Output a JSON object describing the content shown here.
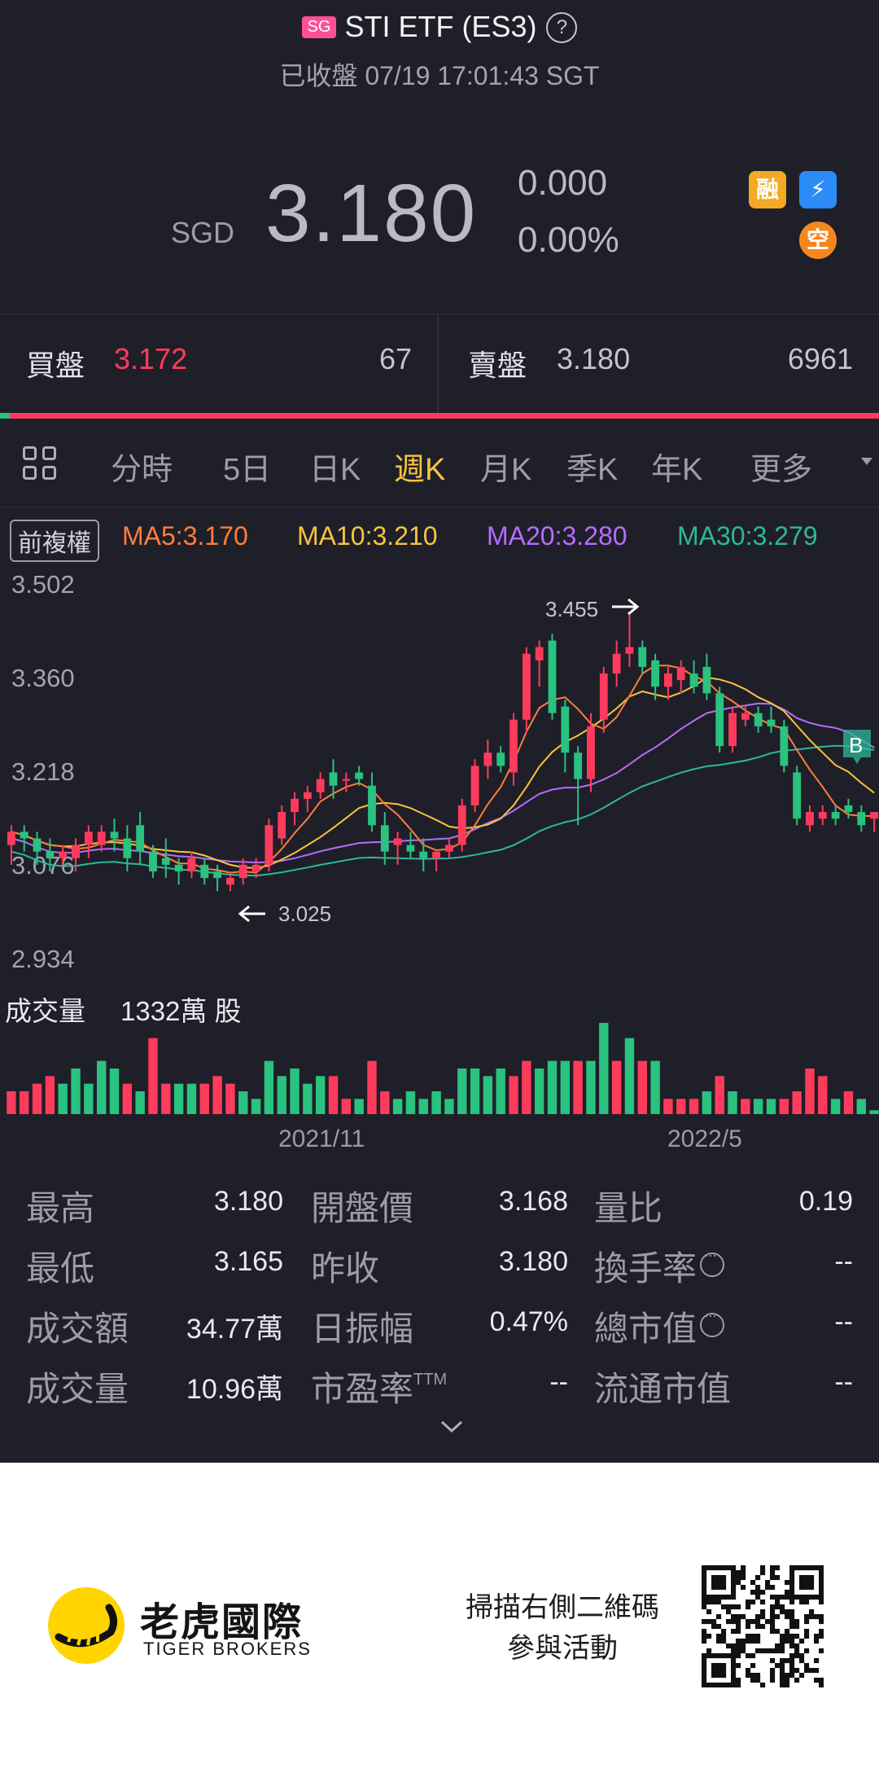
{
  "header": {
    "market_badge": "SG",
    "title": "STI ETF (ES3)",
    "help_icon": "question-circle-icon",
    "status": "已收盤 07/19 17:01:43 SGT"
  },
  "quote": {
    "currency": "SGD",
    "price": "3.180",
    "change": "0.000",
    "change_pct": "0.00%",
    "icons": {
      "margin": "融",
      "flash": "⚡",
      "short": "空"
    }
  },
  "order_book": {
    "bid_label": "買盤",
    "bid_price": "3.172",
    "bid_size": "67",
    "ask_label": "賣盤",
    "ask_price": "3.180",
    "ask_size": "6961",
    "colors": {
      "bid": "#ff3b5c",
      "ask_bar": "#ff3b5c",
      "bid_bar": "#29c27f"
    }
  },
  "tabs": [
    {
      "label": "分時"
    },
    {
      "label": "5日"
    },
    {
      "label": "日K"
    },
    {
      "label": "週K",
      "active": true
    },
    {
      "label": "月K"
    },
    {
      "label": "季K"
    },
    {
      "label": "年K"
    },
    {
      "label": "更多"
    }
  ],
  "indicators": {
    "adjust_label": "前複權",
    "ma5": "MA5:3.170",
    "ma10": "MA10:3.210",
    "ma20": "MA20:3.280",
    "ma30": "MA30:3.279",
    "colors": {
      "ma5": "#ff7e3a",
      "ma10": "#f7c43d",
      "ma20": "#b66cff",
      "ma30": "#2db89a",
      "up": "#ff3b5c",
      "down": "#29c27f"
    }
  },
  "chart": {
    "high_marker": "3.455",
    "low_marker": "3.025",
    "buy_marker": "B",
    "volume_label": "成交量",
    "volume_value": "1332萬 股"
  },
  "chart_data": {
    "type": "candlestick",
    "ylim": [
      2.934,
      3.502
    ],
    "yticks": [
      "3.502",
      "3.360",
      "3.218",
      "3.076",
      "2.934"
    ],
    "xticks": [
      "2021/11",
      "2022/5"
    ],
    "candles": [
      [
        3.1,
        3.13,
        3.07,
        3.12
      ],
      [
        3.12,
        3.13,
        3.09,
        3.11
      ],
      [
        3.11,
        3.12,
        3.07,
        3.09
      ],
      [
        3.09,
        3.11,
        3.06,
        3.08
      ],
      [
        3.08,
        3.1,
        3.07,
        3.09
      ],
      [
        3.08,
        3.11,
        3.06,
        3.1
      ],
      [
        3.1,
        3.13,
        3.08,
        3.12
      ],
      [
        3.1,
        3.13,
        3.09,
        3.12
      ],
      [
        3.12,
        3.14,
        3.09,
        3.11
      ],
      [
        3.11,
        3.13,
        3.06,
        3.08
      ],
      [
        3.13,
        3.15,
        3.07,
        3.09
      ],
      [
        3.09,
        3.1,
        3.05,
        3.06
      ],
      [
        3.08,
        3.11,
        3.05,
        3.07
      ],
      [
        3.07,
        3.08,
        3.04,
        3.06
      ],
      [
        3.06,
        3.09,
        3.05,
        3.08
      ],
      [
        3.07,
        3.08,
        3.04,
        3.05
      ],
      [
        3.06,
        3.07,
        3.03,
        3.05
      ],
      [
        3.04,
        3.06,
        3.03,
        3.05
      ],
      [
        3.05,
        3.08,
        3.04,
        3.07
      ],
      [
        3.06,
        3.08,
        3.05,
        3.07
      ],
      [
        3.07,
        3.14,
        3.06,
        3.13
      ],
      [
        3.11,
        3.16,
        3.1,
        3.15
      ],
      [
        3.15,
        3.18,
        3.13,
        3.17
      ],
      [
        3.17,
        3.19,
        3.15,
        3.18
      ],
      [
        3.18,
        3.21,
        3.17,
        3.2
      ],
      [
        3.21,
        3.23,
        3.17,
        3.19
      ],
      [
        3.2,
        3.21,
        3.18,
        3.2
      ],
      [
        3.21,
        3.22,
        3.19,
        3.2
      ],
      [
        3.19,
        3.21,
        3.12,
        3.13
      ],
      [
        3.13,
        3.15,
        3.07,
        3.09
      ],
      [
        3.1,
        3.12,
        3.07,
        3.11
      ],
      [
        3.1,
        3.12,
        3.08,
        3.09
      ],
      [
        3.09,
        3.11,
        3.06,
        3.08
      ],
      [
        3.08,
        3.09,
        3.06,
        3.09
      ],
      [
        3.09,
        3.11,
        3.08,
        3.1
      ],
      [
        3.1,
        3.17,
        3.09,
        3.16
      ],
      [
        3.16,
        3.23,
        3.15,
        3.22
      ],
      [
        3.22,
        3.26,
        3.2,
        3.24
      ],
      [
        3.24,
        3.25,
        3.21,
        3.22
      ],
      [
        3.21,
        3.3,
        3.19,
        3.29
      ],
      [
        3.29,
        3.4,
        3.27,
        3.39
      ],
      [
        3.38,
        3.41,
        3.34,
        3.4
      ],
      [
        3.41,
        3.42,
        3.29,
        3.3
      ],
      [
        3.31,
        3.32,
        3.21,
        3.24
      ],
      [
        3.24,
        3.25,
        3.13,
        3.2
      ],
      [
        3.2,
        3.3,
        3.18,
        3.28
      ],
      [
        3.29,
        3.37,
        3.27,
        3.36
      ],
      [
        3.36,
        3.41,
        3.34,
        3.39
      ],
      [
        3.39,
        3.45,
        3.37,
        3.4
      ],
      [
        3.4,
        3.41,
        3.36,
        3.37
      ],
      [
        3.38,
        3.39,
        3.32,
        3.34
      ],
      [
        3.34,
        3.37,
        3.32,
        3.36
      ],
      [
        3.35,
        3.38,
        3.33,
        3.37
      ],
      [
        3.36,
        3.38,
        3.33,
        3.34
      ],
      [
        3.37,
        3.39,
        3.32,
        3.33
      ],
      [
        3.33,
        3.34,
        3.24,
        3.25
      ],
      [
        3.25,
        3.31,
        3.24,
        3.3
      ],
      [
        3.29,
        3.31,
        3.28,
        3.3
      ],
      [
        3.3,
        3.31,
        3.27,
        3.28
      ],
      [
        3.29,
        3.31,
        3.27,
        3.28
      ],
      [
        3.28,
        3.29,
        3.21,
        3.22
      ],
      [
        3.21,
        3.22,
        3.13,
        3.14
      ],
      [
        3.13,
        3.16,
        3.12,
        3.15
      ],
      [
        3.14,
        3.16,
        3.13,
        3.15
      ],
      [
        3.15,
        3.16,
        3.13,
        3.14
      ],
      [
        3.16,
        3.17,
        3.14,
        3.15
      ],
      [
        3.15,
        3.16,
        3.12,
        3.13
      ],
      [
        3.14,
        3.15,
        3.12,
        3.15
      ]
    ],
    "volume": [
      [
        3,
        1
      ],
      [
        3,
        1
      ],
      [
        4,
        1
      ],
      [
        5,
        1
      ],
      [
        4,
        0
      ],
      [
        6,
        0
      ],
      [
        4,
        0
      ],
      [
        7,
        0
      ],
      [
        6,
        0
      ],
      [
        4,
        1
      ],
      [
        3,
        0
      ],
      [
        10,
        1
      ],
      [
        4,
        1
      ],
      [
        4,
        0
      ],
      [
        4,
        0
      ],
      [
        4,
        1
      ],
      [
        5,
        1
      ],
      [
        4,
        1
      ],
      [
        3,
        0
      ],
      [
        2,
        0
      ],
      [
        7,
        0
      ],
      [
        5,
        0
      ],
      [
        6,
        0
      ],
      [
        4,
        0
      ],
      [
        5,
        0
      ],
      [
        5,
        1
      ],
      [
        2,
        1
      ],
      [
        2,
        0
      ],
      [
        7,
        1
      ],
      [
        3,
        1
      ],
      [
        2,
        0
      ],
      [
        3,
        0
      ],
      [
        2,
        0
      ],
      [
        3,
        0
      ],
      [
        2,
        0
      ],
      [
        6,
        0
      ],
      [
        6,
        0
      ],
      [
        5,
        0
      ],
      [
        6,
        0
      ],
      [
        5,
        1
      ],
      [
        7,
        1
      ],
      [
        6,
        0
      ],
      [
        7,
        0
      ],
      [
        7,
        0
      ],
      [
        7,
        1
      ],
      [
        7,
        0
      ],
      [
        12,
        0
      ],
      [
        7,
        1
      ],
      [
        10,
        0
      ],
      [
        7,
        1
      ],
      [
        7,
        0
      ],
      [
        2,
        1
      ],
      [
        2,
        1
      ],
      [
        2,
        1
      ],
      [
        3,
        0
      ],
      [
        5,
        1
      ],
      [
        3,
        0
      ],
      [
        2,
        1
      ],
      [
        2,
        0
      ],
      [
        2,
        0
      ],
      [
        2,
        1
      ],
      [
        3,
        1
      ],
      [
        6,
        1
      ],
      [
        5,
        1
      ],
      [
        2,
        0
      ],
      [
        3,
        1
      ],
      [
        2,
        0
      ],
      [
        0.5,
        0
      ]
    ]
  },
  "stats": {
    "high_label": "最高",
    "high": "3.180",
    "open_label": "開盤價",
    "open": "3.168",
    "vol_ratio_label": "量比",
    "vol_ratio": "0.19",
    "low_label": "最低",
    "low": "3.165",
    "prev_close_label": "昨收",
    "prev_close": "3.180",
    "turnover_rate_label": "換手率",
    "turnover_rate": "--",
    "turnover_label": "成交額",
    "turnover": "34.77萬",
    "amplitude_label": "日振幅",
    "amplitude": "0.47%",
    "market_cap_label": "總市值",
    "market_cap": "--",
    "volume_label": "成交量",
    "volume": "10.96萬",
    "pe_label": "市盈率",
    "pe_sup": "TTM",
    "pe": "--",
    "float_cap_label": "流通市值",
    "float_cap": "--"
  },
  "footer": {
    "brand_cn": "老虎國際",
    "brand_en": "TIGER BROKERS",
    "promo_line1": "掃描右側二維碼",
    "promo_line2": "參與活動"
  }
}
